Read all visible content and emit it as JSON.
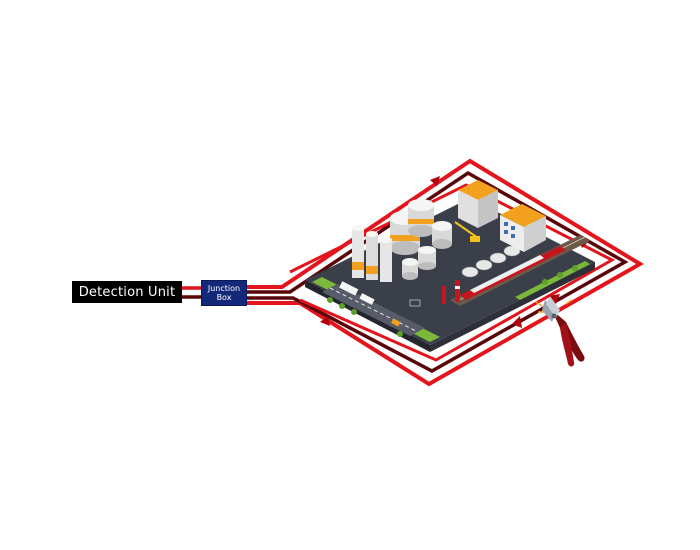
{
  "diagram": {
    "detection_unit_label": "Detection Unit",
    "junction_box_line1": "Junction",
    "junction_box_line2": "Box"
  },
  "colors": {
    "cable_red": "#e3141b",
    "cable_dark": "#5a0608",
    "detection_unit_bg": "#000000",
    "junction_box_bg": "#14287a",
    "plant_base": "#3b3f4a",
    "ground_green": "#7bb93a",
    "accent_orange": "#f1a11e"
  },
  "icons": [
    "facility-illustration-icon",
    "wire-cutter-icon",
    "direction-arrow-icon"
  ]
}
